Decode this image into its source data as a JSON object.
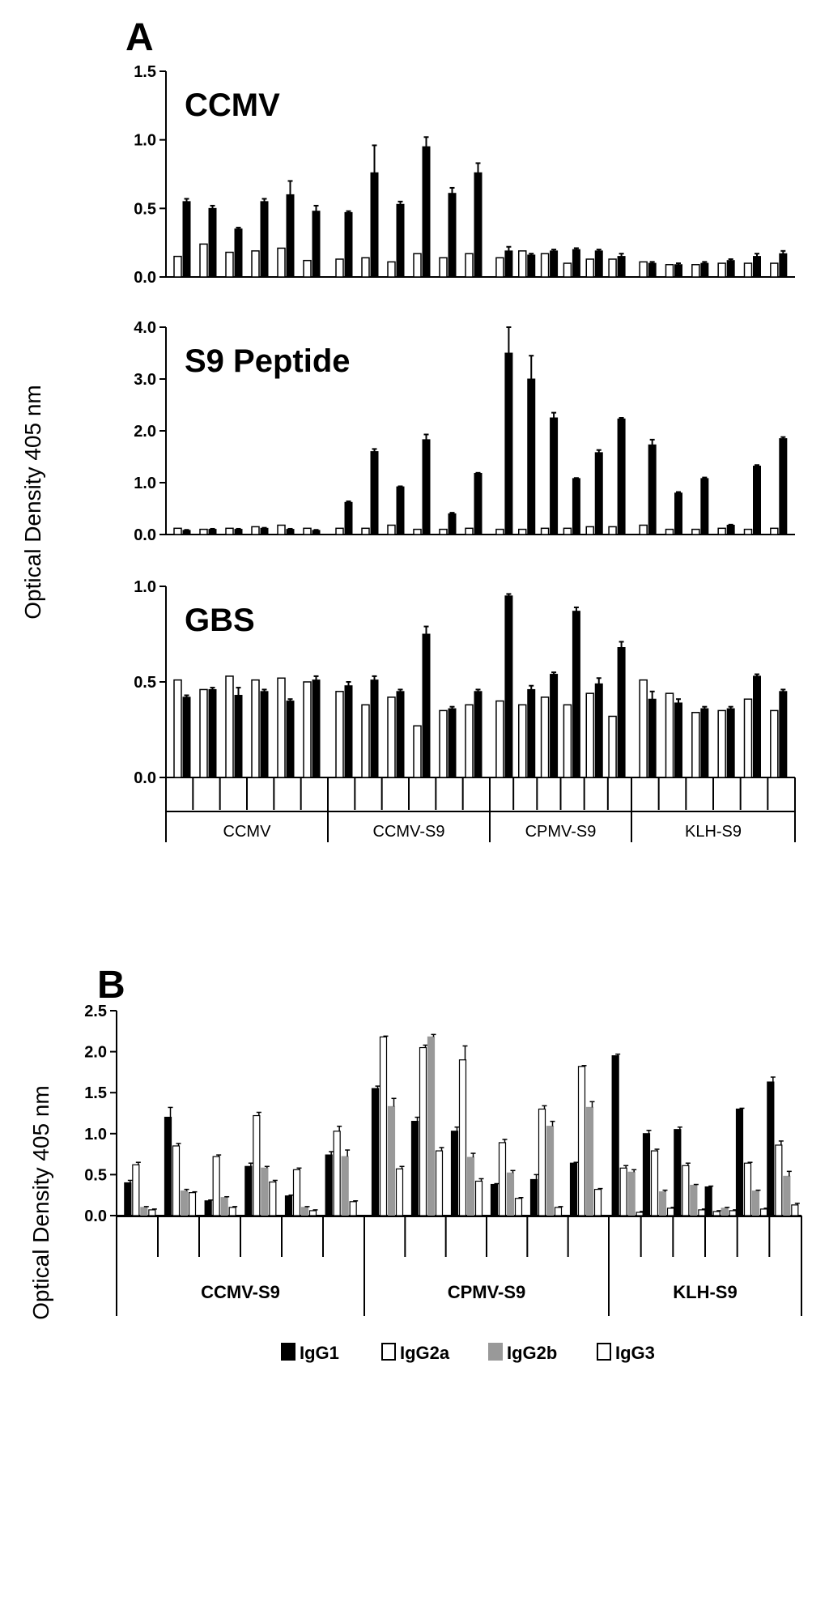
{
  "figure": {
    "panel_a_label": "A",
    "panel_b_label": "B",
    "ylabel": "Optical Density 405 nm",
    "a_groups": [
      "CCMV",
      "CCMV-S9",
      "CPMV-S9",
      "KLH-S9"
    ],
    "b_groups": [
      "CCMV-S9",
      "CPMV-S9",
      "KLH-S9"
    ],
    "legend": [
      "IgG1",
      "IgG2a",
      "IgG2b",
      "IgG3"
    ]
  },
  "colors": {
    "black": "#000000",
    "white": "#ffffff",
    "gray": "#999999"
  },
  "chart_data": [
    {
      "type": "bar",
      "title": "CCMV",
      "ylim": [
        0,
        1.5
      ],
      "yticks": [
        "0.0",
        "0.5",
        "1.0",
        "1.5"
      ],
      "groups": [
        "CCMV",
        "CCMV-S9",
        "CPMV-S9",
        "KLH-S9"
      ],
      "series": [
        {
          "values": [
            0.15,
            0.24,
            0.18,
            0.19,
            0.21,
            0.12,
            0.13,
            0.14,
            0.11,
            0.17,
            0.14,
            0.17,
            0.14,
            0.19,
            0.17,
            0.1,
            0.13,
            0.13,
            0.11,
            0.09,
            0.09,
            0.1,
            0.1,
            0.1
          ]
        },
        {
          "values": [
            0.55,
            0.5,
            0.35,
            0.55,
            0.6,
            0.48,
            0.47,
            0.76,
            0.53,
            0.95,
            0.61,
            0.76,
            0.19,
            0.16,
            0.19,
            0.2,
            0.19,
            0.15,
            0.1,
            0.09,
            0.1,
            0.12,
            0.15,
            0.17
          ]
        }
      ],
      "errors": [
        0.02,
        0.02,
        0.01,
        0.02,
        0.1,
        0.04,
        0.01,
        0.2,
        0.02,
        0.07,
        0.04,
        0.07,
        0.03,
        0.01,
        0.01,
        0.01,
        0.01,
        0.02,
        0.01,
        0.01,
        0.01,
        0.01,
        0.02,
        0.02
      ]
    },
    {
      "type": "bar",
      "title": "S9 Peptide",
      "ylim": [
        0,
        4.0
      ],
      "yticks": [
        "0.0",
        "1.0",
        "2.0",
        "3.0",
        "4.0"
      ],
      "groups": [
        "CCMV",
        "CCMV-S9",
        "CPMV-S9",
        "KLH-S9"
      ],
      "series": [
        {
          "values": [
            0.12,
            0.1,
            0.12,
            0.15,
            0.18,
            0.12,
            0.12,
            0.12,
            0.18,
            0.1,
            0.1,
            0.12,
            0.1,
            0.1,
            0.12,
            0.12,
            0.15,
            0.15,
            0.18,
            0.1,
            0.1,
            0.12,
            0.1,
            0.12
          ]
        },
        {
          "values": [
            0.08,
            0.1,
            0.1,
            0.12,
            0.1,
            0.08,
            0.62,
            1.6,
            0.92,
            1.83,
            0.4,
            1.18,
            3.5,
            3.0,
            2.25,
            1.08,
            1.58,
            2.23,
            1.73,
            0.8,
            1.08,
            0.18,
            1.32,
            1.85
          ]
        }
      ],
      "errors": [
        0.01,
        0.01,
        0.01,
        0.01,
        0.01,
        0.01,
        0.02,
        0.05,
        0.01,
        0.1,
        0.02,
        0.01,
        0.5,
        0.45,
        0.1,
        0.01,
        0.05,
        0.02,
        0.1,
        0.02,
        0.02,
        0.01,
        0.02,
        0.03
      ]
    },
    {
      "type": "bar",
      "title": "GBS",
      "ylim": [
        0,
        1.0
      ],
      "yticks": [
        "0.0",
        "0.5",
        "1.0"
      ],
      "groups": [
        "CCMV",
        "CCMV-S9",
        "CPMV-S9",
        "KLH-S9"
      ],
      "series": [
        {
          "values": [
            0.51,
            0.46,
            0.53,
            0.51,
            0.52,
            0.5,
            0.45,
            0.38,
            0.42,
            0.27,
            0.35,
            0.38,
            0.4,
            0.38,
            0.42,
            0.38,
            0.44,
            0.32,
            0.51,
            0.44,
            0.34,
            0.35,
            0.41,
            0.35
          ]
        },
        {
          "values": [
            0.42,
            0.46,
            0.43,
            0.45,
            0.4,
            0.51,
            0.48,
            0.51,
            0.45,
            0.75,
            0.36,
            0.45,
            0.95,
            0.46,
            0.54,
            0.87,
            0.49,
            0.68,
            0.41,
            0.39,
            0.36,
            0.36,
            0.53,
            0.45
          ]
        }
      ],
      "errors": [
        0.01,
        0.01,
        0.04,
        0.01,
        0.01,
        0.02,
        0.02,
        0.02,
        0.01,
        0.04,
        0.01,
        0.01,
        0.01,
        0.02,
        0.01,
        0.02,
        0.03,
        0.03,
        0.04,
        0.02,
        0.01,
        0.01,
        0.01,
        0.01
      ]
    },
    {
      "type": "bar",
      "ylim": [
        0,
        2.5
      ],
      "yticks": [
        "0.0",
        "0.5",
        "1.0",
        "1.5",
        "2.0",
        "2.5"
      ],
      "groups": [
        "CCMV-S9",
        "CPMV-S9",
        "KLH-S9"
      ],
      "series": [
        {
          "name": "IgG1",
          "values": [
            0.4,
            1.2,
            0.18,
            0.6,
            0.24,
            0.74,
            1.55,
            1.15,
            1.03,
            0.38,
            0.44,
            0.64,
            1.95,
            1.0,
            1.05,
            0.35,
            1.3,
            1.63
          ]
        },
        {
          "name": "IgG2a",
          "values": [
            0.62,
            0.85,
            0.72,
            1.22,
            0.56,
            1.03,
            2.18,
            2.05,
            1.9,
            0.89,
            1.3,
            1.82,
            0.58,
            0.79,
            0.61,
            0.05,
            0.64,
            0.86
          ]
        },
        {
          "name": "IgG2b",
          "values": [
            0.1,
            0.3,
            0.22,
            0.58,
            0.1,
            0.72,
            1.33,
            2.18,
            0.71,
            0.52,
            1.09,
            1.32,
            0.53,
            0.29,
            0.37,
            0.09,
            0.3,
            0.48
          ]
        },
        {
          "name": "IgG3",
          "values": [
            0.07,
            0.28,
            0.1,
            0.41,
            0.06,
            0.17,
            0.57,
            0.79,
            0.42,
            0.21,
            0.1,
            0.32,
            0.04,
            0.09,
            0.07,
            0.06,
            0.08,
            0.13
          ]
        }
      ],
      "errors": [
        [
          0.03,
          0.12,
          0.01,
          0.04,
          0.01,
          0.04,
          0.03,
          0.05,
          0.05,
          0.01,
          0.06,
          0.01,
          0.02,
          0.04,
          0.03,
          0.01,
          0.01,
          0.06
        ],
        [
          0.03,
          0.03,
          0.02,
          0.04,
          0.02,
          0.06,
          0.01,
          0.03,
          0.17,
          0.04,
          0.04,
          0.01,
          0.03,
          0.02,
          0.03,
          0.01,
          0.01,
          0.05
        ],
        [
          0.01,
          0.02,
          0.01,
          0.02,
          0.01,
          0.08,
          0.1,
          0.03,
          0.05,
          0.03,
          0.06,
          0.07,
          0.03,
          0.02,
          0.01,
          0.01,
          0.01,
          0.06
        ],
        [
          0.01,
          0.01,
          0.01,
          0.02,
          0.01,
          0.01,
          0.03,
          0.04,
          0.03,
          0.01,
          0.01,
          0.01,
          0.01,
          0.01,
          0.01,
          0.01,
          0.01,
          0.02
        ]
      ]
    }
  ]
}
